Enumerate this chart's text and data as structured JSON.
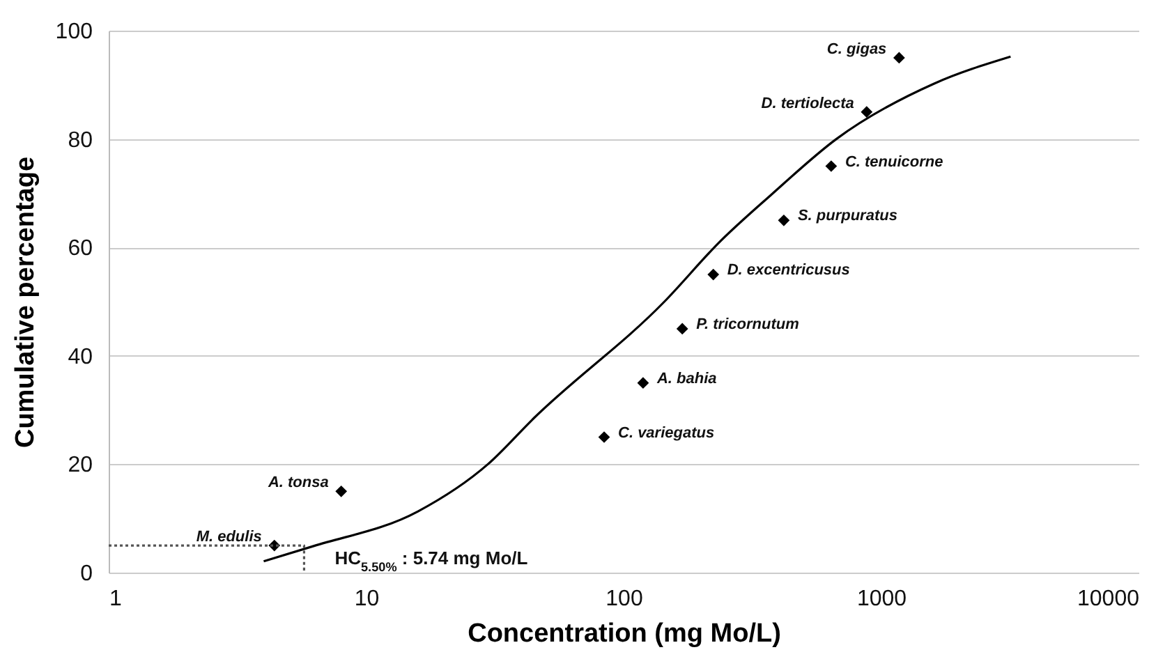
{
  "chart_data": {
    "type": "scatter",
    "xlabel": "Concentration (mg Mo/L)",
    "ylabel": "Cumulative percentage",
    "log": "x",
    "xlim": [
      1,
      10000
    ],
    "xticks": [
      1,
      10,
      100,
      1000,
      10000
    ],
    "ylim": [
      0,
      100
    ],
    "yticks": [
      0,
      20,
      40,
      60,
      80,
      100
    ],
    "grid": "y",
    "series": [
      {
        "marker": "diamond",
        "color": "#000000",
        "x": [
          4.4,
          8.0,
          84,
          119,
          169,
          223,
          419,
          640,
          879,
          1175
        ],
        "values": [
          5,
          15,
          25,
          35,
          45,
          55,
          65,
          75,
          85,
          95
        ]
      },
      {
        "type": "line",
        "color": "#000000",
        "x": [
          4.0,
          6.25,
          15.9,
          29.7,
          44.8,
          144,
          237,
          374,
          670,
          1603,
          3184
        ],
        "values": [
          2.1,
          4.9,
          11.3,
          20,
          28.5,
          50,
          61.1,
          69.7,
          80,
          90.2,
          95.2
        ]
      },
      {
        "type": "line",
        "line_style": "dotted",
        "color": "#555555",
        "x": [
          1,
          5.74,
          5.74
        ],
        "values": [
          5,
          5,
          0
        ]
      }
    ],
    "annotations": [
      {
        "text": "HC$_{5.50%}$ : 5.74 mg Mo/L",
        "x": 5.74,
        "y": 0
      },
      {
        "text": "M. edulis",
        "x": 4.4,
        "y": 5
      },
      {
        "text": "A. tonsa",
        "x": 8.0,
        "y": 15
      },
      {
        "text": "C. variegatus",
        "x": 84,
        "y": 25
      },
      {
        "text": "A. bahia",
        "x": 119,
        "y": 35
      },
      {
        "text": "P. tricornutum",
        "x": 169,
        "y": 45
      },
      {
        "text": "D. excentricusus",
        "x": 223,
        "y": 55
      },
      {
        "text": "S. purpuratus",
        "x": 419,
        "y": 65
      },
      {
        "text": "C. tenuicorne",
        "x": 640,
        "y": 75
      },
      {
        "text": "D. tertiolecta",
        "x": 879,
        "y": 85
      },
      {
        "text": "C. gigas",
        "x": 1175,
        "y": 95
      }
    ]
  }
}
